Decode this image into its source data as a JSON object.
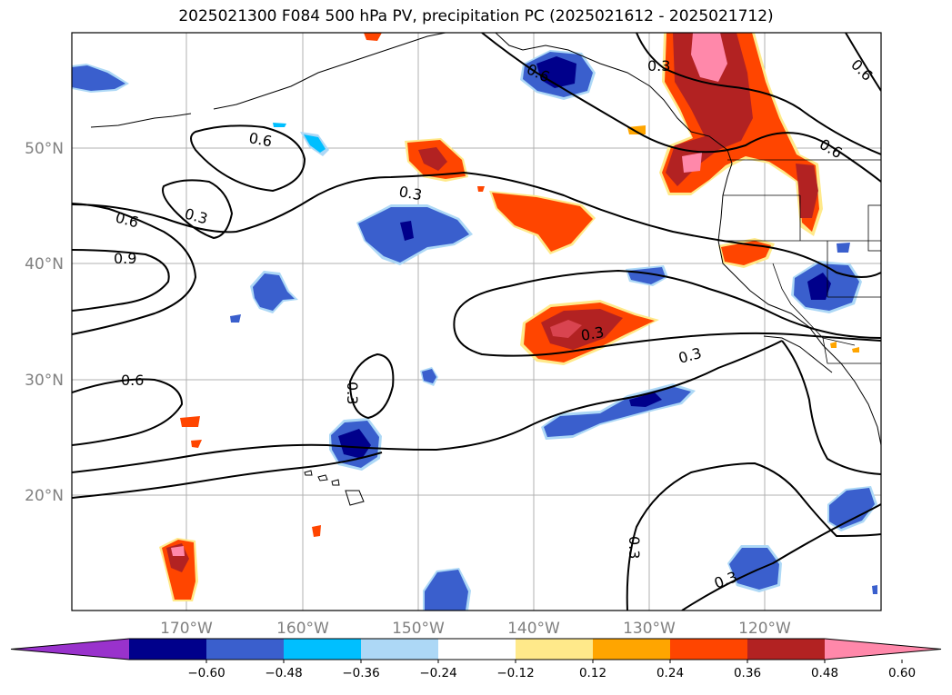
{
  "title": "2025021300 F084 500 hPa PV, precipitation PC (2025021612 - 2025021712)",
  "lat_labels": [
    "50°N",
    "40°N",
    "30°N",
    "20°N"
  ],
  "lon_labels": [
    "170°W",
    "160°W",
    "150°W",
    "140°W",
    "130°W",
    "120°W"
  ],
  "colorbar": {
    "ticks": [
      "−0.60",
      "−0.48",
      "−0.36",
      "−0.24",
      "−0.12",
      "0.12",
      "0.24",
      "0.36",
      "0.48",
      "0.60"
    ],
    "colors": [
      "#9932cc",
      "#00008b",
      "#3a5fcd",
      "#00bfff",
      "#add8f6",
      "#ffffff",
      "#ffe98a",
      "#ffa500",
      "#ff4500",
      "#b22222",
      "#ff88aa"
    ]
  },
  "contour_labels": [
    "0.6",
    "0.3",
    "0.6",
    "0.6",
    "0.3",
    "0.6",
    "0.3",
    "0.9",
    "0.6",
    "0.3",
    "0.3",
    "0.3",
    "0.3",
    "0.3"
  ]
}
